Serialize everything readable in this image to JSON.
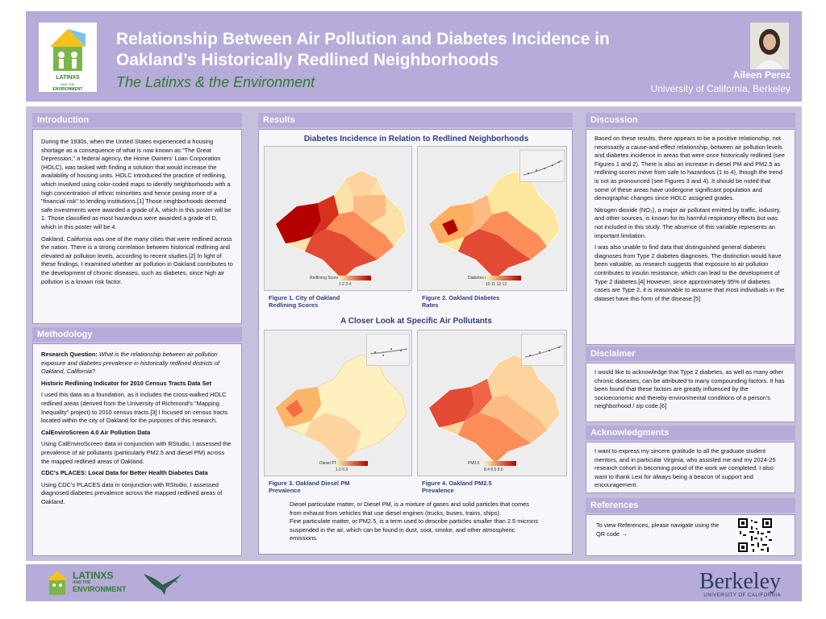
{
  "header": {
    "title": "Relationship Between Air Pollution and Diabetes Incidence in Oakland’s Historically Redlined Neighborhoods",
    "subtitle": "The Latinxs & the Environment",
    "author": "Aileen Perez",
    "affiliation": "University of California, Berkeley",
    "logo_text": "LATINXS AND THE ENVIRONMENT"
  },
  "introduction": {
    "heading": "Introduction",
    "p1": "During the 1930s, when the United States experienced a housing shortage as a consequence of what is now known as \"The Great Depression,\" a federal agency, the Home Owners' Loan Corporation (HOLC), was tasked with finding a solution that would increase the availability of housing units. HOLC introduced the practice of redlining, which involved using color-coded maps to identify neighborhoods with a high concentration of ethnic minorities and hence posing more of a \"financial risk\" to lending institutions.[1] Those neighborhoods deemed safe investments were awarded a grade of A, which in this poster will be 1. Those classified as most hazardous were awarded a grade of D, which in this poster will be 4.",
    "p2": "Oakland, California was one of the many cities that were redlined across the nation. There is a strong correlation between historical redlining and elevated air pollution levels, according to recent studies.[2] In light of these findings, I examined whether air pollution in Oakland contributes to the development of chronic diseases, such as diabetes, since high air pollution is a known risk factor."
  },
  "methodology": {
    "heading": "Methodology",
    "rq_label": "Research Question:",
    "rq_text": "What is the relationship between air pollution exposure and diabetes prevalence in historically redlined districts of Oakland, California?",
    "sub1": "Historic Redlining Indicator for 2010 Census Tracts Data Set",
    "p1": "I used this data as a foundation, as it includes the cross-walked HOLC redlined areas (derived from the University of Richmond's \"Mapping Inequality\" project) to 2010 census tracts.[3] I focused on census tracts located within the city of Oakland for the purposes of this research.",
    "sub2": "CalEnviroScreen 4.0 Air Pollution Data",
    "p2": "Using CalEnviroScreen data in conjunction with RStudio, I assessed the prevalence of air pollutants (particularly PM2.5 and diesel PM) across the mapped redlined areas of Oakland.",
    "sub3": "CDC's PLACES: Local Data for Better Health Diabetes Data",
    "p3": "Using CDC's PLACES data in conjunction with RStudio, I assessed diagnosed diabetes prevalence across the mapped redlined areas of Oakland."
  },
  "results": {
    "heading": "Results",
    "fig_top_title": "Diabetes Incidence in Relation to Redlined Neighborhoods",
    "fig_bottom_title": "A Closer Look at Specific Air Pollutants",
    "fig1_caption": "Figure 1. City of Oakland Redlining Scores",
    "fig2_caption": "Figure 2. Oakland Diabetes Rates",
    "fig3_caption": "Figure 3. Oakland Diesel PM Prevalence",
    "fig4_caption": "Figure 4. Oakland PM2.5 Prevalence",
    "fig1_legend": "Redlining Score",
    "fig2_legend": "Diabetes (%)",
    "fig3_legend": "Diesel PM",
    "fig4_legend": "PM2.5",
    "fig1_ticks": "1   2   3   4",
    "fig2_ticks": "10  11  12  13",
    "fig3_ticks": "1.0  0.5",
    "fig4_ticks": "8.4  8.5  8.5",
    "note1": "Diesel particulate matter, or Diesel PM, is a mixture of gases and solid particles that comes from exhaust from vehicles that use diesel engines (trucks, buses, trains, ships).",
    "note2": "Fine particulate matter, or PM2.5, is a term used to describe particles smaller than 2.5 microns suspended in the air, which can be found in dust, soot, smoke, and other atmospheric emissions."
  },
  "discussion": {
    "heading": "Discussion",
    "p1": "Based on these results, there appears to be a positive relationship, not necessarily a cause-and-effect relationship, between air pollution levels and diabetes incidence in areas that were once historically redlined (see Figures 1 and 2). There is also an increase in diesel PM and PM2.5 as redlining scores move from safe to hazardous (1 to 4), though the trend is not as pronounced (see Figures 3 and 4). It should be noted that some of these areas have undergone significant population and demographic changes since HOLC assigned grades.",
    "p2": "Nitrogen dioxide (NO₂), a major air pollutant emitted by traffic, industry, and other sources, is known for its harmful respiratory effects but was not included in this study. The absence of this variable represents an important limitation.",
    "p3": "I was also unable to find data that distinguished general diabetes diagnoses from Type 2 diabetes diagnoses. The distinction would have been valuable, as research suggests that exposure to air pollution contributes to insulin resistance, which can lead to the development of Type 2 diabetes.[4] However, since approximately 95% of diabetes cases are Type 2, it is reasonable to assume that most individuals in the dataset have this form of the disease.[5]"
  },
  "disclaimer": {
    "heading": "Disclaimer",
    "p1": "I would like to acknowledge that Type 2 diabetes, as well as many other chronic diseases, can be attributed to many compounding factors. It has been found that these factors are greatly influenced by the socioeconomic and thereby environmental conditions of a person's neighborhood / zip code.[6]"
  },
  "acknowledgments": {
    "heading": "Acknowledgments",
    "p1": "I want to express my sincere gratitude to all the graduate student mentors, and in particular Virginia, who assisted me and my 2024-25 research cohort in becoming proud of the work we completed. I also want to thank Lexi for always being a beacon of support and encouragement."
  },
  "references": {
    "heading": "References",
    "p1": "To view References, please navigate using the QR code  →"
  },
  "footer": {
    "logo_line1": "LATINXS",
    "logo_line2": "AND THE",
    "logo_line3": "ENVIRONMENT",
    "berkeley": "Berkeley",
    "uc": "UNIVERSITY OF CALIFORNIA"
  },
  "colors": {
    "header_bg": "#b6abd9",
    "content_bg": "#c7c0dd",
    "caption_blue": "#2f3f7a",
    "green": "#2e7d2e",
    "map_dark_red": "#b30000",
    "map_light": "#fff3b0"
  }
}
